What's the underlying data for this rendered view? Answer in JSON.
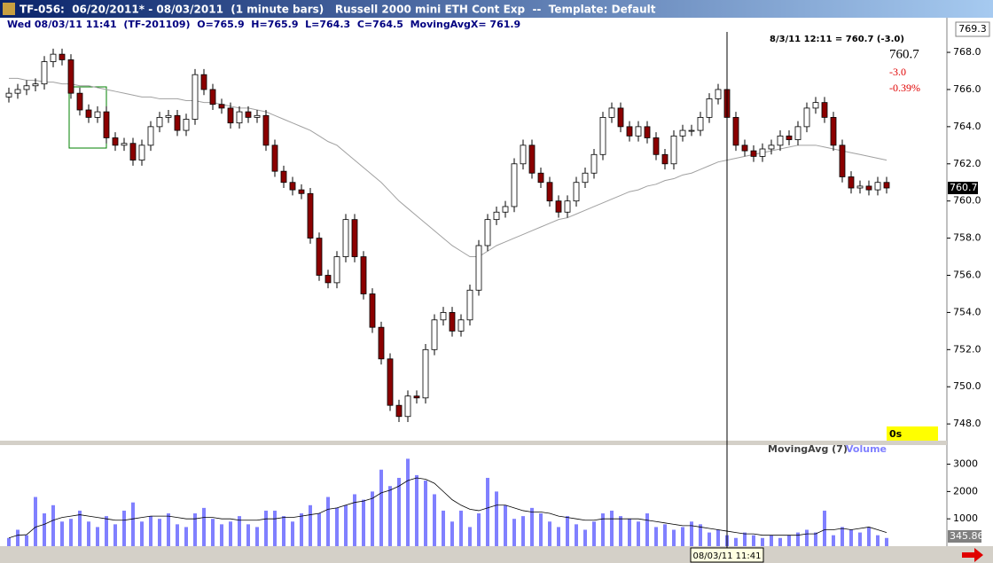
{
  "window": {
    "title": "TF-056:  06/20/2011* - 08/03/2011  (1 minute bars)   Russell 2000 mini ETH Cont Exp  --  Template: Default",
    "info": "Wed 08/03/11 11:41  (TF-201109)  O=765.9  H=765.9  L=764.3  C=764.5  MovingAvgX= 761.9",
    "quote": "8/3/11 12:11 = 760.7 (-3.0)",
    "last": "760.7",
    "change": "-3.0",
    "change_pct": "-0.39%",
    "axis_top": "769.3",
    "timer": "0s",
    "cursor_time": "08/03/11 11:41"
  },
  "chart_data": [
    {
      "type": "candlestick",
      "up_color": "#ffffff",
      "down_color": "#8b0000",
      "last_price": 760.7,
      "open": [
        765.6,
        765.8,
        766.0,
        766.2,
        766.3,
        767.5,
        767.9,
        767.6,
        765.8,
        764.9,
        764.5,
        764.8,
        763.4,
        763.0,
        763.1,
        762.2,
        763.0,
        764.0,
        764.5,
        764.6,
        763.8,
        764.4,
        766.8,
        766.0,
        765.2,
        765.0,
        764.2,
        764.8,
        764.5,
        764.6,
        763.0,
        761.6,
        761.0,
        760.6,
        760.4,
        758.0,
        756.0,
        755.6,
        757.0,
        759.0,
        757.0,
        755.0,
        753.2,
        751.5,
        749.0,
        748.4,
        749.5,
        749.4,
        752.0,
        753.6,
        754.0,
        753.0,
        753.6,
        755.2,
        757.6,
        759.0,
        759.4,
        759.7,
        762.0,
        763.0,
        761.5,
        761.0,
        760.0,
        759.4,
        760.0,
        761.0,
        761.5,
        762.5,
        764.5,
        765.0,
        764.0,
        763.5,
        764.0,
        763.4,
        762.5,
        762.0,
        763.5,
        763.8,
        763.8,
        764.5,
        765.5,
        766.0,
        764.5,
        763.0,
        762.7,
        762.4,
        762.8,
        763.0,
        763.5,
        763.3,
        764.0,
        765.0,
        765.3,
        764.5,
        763.0,
        761.3,
        760.7,
        760.8,
        760.6,
        761.0
      ],
      "high": [
        766.1,
        766.3,
        766.5,
        766.6,
        767.8,
        768.2,
        768.2,
        767.9,
        766.1,
        765.2,
        765.1,
        765.1,
        763.7,
        763.4,
        763.4,
        763.3,
        764.3,
        764.8,
        764.9,
        764.9,
        764.7,
        767.1,
        767.1,
        766.3,
        765.5,
        765.3,
        765.1,
        765.1,
        764.9,
        764.9,
        763.3,
        761.9,
        761.3,
        760.9,
        760.7,
        758.3,
        756.3,
        757.3,
        759.3,
        759.3,
        757.3,
        755.3,
        753.5,
        751.8,
        749.3,
        749.8,
        749.8,
        752.3,
        753.9,
        754.3,
        754.3,
        753.9,
        755.5,
        757.9,
        759.3,
        759.7,
        760.0,
        762.3,
        763.3,
        763.3,
        761.8,
        761.3,
        760.3,
        760.3,
        761.3,
        761.8,
        762.8,
        764.8,
        765.3,
        765.3,
        764.3,
        764.3,
        764.3,
        763.7,
        762.8,
        763.8,
        764.1,
        764.1,
        764.8,
        765.8,
        766.3,
        766.3,
        764.8,
        763.3,
        763.0,
        763.1,
        763.3,
        763.8,
        763.8,
        764.3,
        765.3,
        765.6,
        765.6,
        764.8,
        763.3,
        761.6,
        761.1,
        761.1,
        761.3,
        761.3
      ],
      "low": [
        765.3,
        765.5,
        765.7,
        765.9,
        766.0,
        767.2,
        767.3,
        765.5,
        764.6,
        764.2,
        764.2,
        763.1,
        762.7,
        762.7,
        761.9,
        761.9,
        762.7,
        763.7,
        764.2,
        763.5,
        763.5,
        764.1,
        765.7,
        764.9,
        764.7,
        763.9,
        763.9,
        764.2,
        764.2,
        762.7,
        761.3,
        760.7,
        760.3,
        760.1,
        757.7,
        755.7,
        755.3,
        755.3,
        756.7,
        756.7,
        754.7,
        752.9,
        751.2,
        748.7,
        748.1,
        748.1,
        749.1,
        749.1,
        751.7,
        753.3,
        752.7,
        752.7,
        753.3,
        754.9,
        757.3,
        758.7,
        759.1,
        759.4,
        761.7,
        761.2,
        760.7,
        759.7,
        759.1,
        759.1,
        759.7,
        760.7,
        761.2,
        762.2,
        764.2,
        763.7,
        763.2,
        763.2,
        763.1,
        762.2,
        761.7,
        761.7,
        763.2,
        763.5,
        763.5,
        764.2,
        765.2,
        764.2,
        762.7,
        762.4,
        762.1,
        762.1,
        762.5,
        762.7,
        763.0,
        763.0,
        763.7,
        764.7,
        764.2,
        762.7,
        761.0,
        760.4,
        760.4,
        760.3,
        760.3,
        760.4
      ],
      "close": [
        765.8,
        766.0,
        766.2,
        766.3,
        767.5,
        767.9,
        767.6,
        765.8,
        764.9,
        764.5,
        764.8,
        763.4,
        763.0,
        763.1,
        762.2,
        763.0,
        764.0,
        764.5,
        764.6,
        763.8,
        764.4,
        766.8,
        766.0,
        765.2,
        765.0,
        764.2,
        764.8,
        764.5,
        764.6,
        763.0,
        761.6,
        761.0,
        760.6,
        760.4,
        758.0,
        756.0,
        755.6,
        757.0,
        759.0,
        757.0,
        755.0,
        753.2,
        751.5,
        749.0,
        748.4,
        749.5,
        749.4,
        752.0,
        753.6,
        754.0,
        753.0,
        753.6,
        755.2,
        757.6,
        759.0,
        759.4,
        759.7,
        762.0,
        763.0,
        761.5,
        761.0,
        760.0,
        759.4,
        760.0,
        761.0,
        761.5,
        762.5,
        764.5,
        765.0,
        764.0,
        763.5,
        764.0,
        763.4,
        762.5,
        762.0,
        763.5,
        763.8,
        763.8,
        764.5,
        765.5,
        766.0,
        764.5,
        763.0,
        762.7,
        762.4,
        762.8,
        763.0,
        763.5,
        763.3,
        764.0,
        765.0,
        765.3,
        764.5,
        763.0,
        761.3,
        760.7,
        760.8,
        760.6,
        761.0,
        760.7
      ],
      "moving_average": {
        "color": "#a0a0a0",
        "values": [
          766.6,
          766.6,
          766.5,
          766.5,
          766.4,
          766.4,
          766.3,
          766.3,
          766.2,
          766.2,
          766.1,
          766.0,
          765.9,
          765.8,
          765.7,
          765.6,
          765.6,
          765.5,
          765.5,
          765.5,
          765.4,
          765.4,
          765.3,
          765.3,
          765.2,
          765.1,
          765.0,
          765.0,
          764.9,
          764.8,
          764.6,
          764.4,
          764.2,
          764.0,
          763.8,
          763.5,
          763.2,
          763.0,
          762.6,
          762.2,
          761.8,
          761.4,
          761.0,
          760.5,
          760.0,
          759.6,
          759.2,
          758.8,
          758.4,
          758.0,
          757.6,
          757.3,
          757.0,
          757.0,
          757.3,
          757.6,
          757.8,
          758.0,
          758.2,
          758.4,
          758.6,
          758.8,
          759.0,
          759.1,
          759.3,
          759.5,
          759.7,
          759.9,
          760.1,
          760.3,
          760.5,
          760.6,
          760.8,
          760.9,
          761.1,
          761.2,
          761.4,
          761.5,
          761.7,
          761.9,
          762.1,
          762.2,
          762.3,
          762.4,
          762.5,
          762.6,
          762.7,
          762.8,
          762.9,
          763.0,
          763.0,
          763.0,
          762.9,
          762.8,
          762.7,
          762.6,
          762.5,
          762.4,
          762.3,
          762.2
        ]
      },
      "ylim": [
        747.1,
        769.1
      ],
      "yticks": [
        {
          "value": 748,
          "label": "748.0"
        },
        {
          "value": 750,
          "label": "750.0"
        },
        {
          "value": 752,
          "label": "752.0"
        },
        {
          "value": 754,
          "label": "754.0"
        },
        {
          "value": 756,
          "label": "756.0"
        },
        {
          "value": 758,
          "label": "758.0"
        },
        {
          "value": 760,
          "label": "760.0"
        },
        {
          "value": 762,
          "label": "762.0"
        },
        {
          "value": 764,
          "label": "764.0"
        },
        {
          "value": 766,
          "label": "766.0"
        },
        {
          "value": 768,
          "label": "768.0"
        }
      ]
    },
    {
      "type": "bar",
      "last_label": "345.86",
      "series": [
        {
          "name": "MovingAvg (7)",
          "color": "#000000",
          "type": "line",
          "values": [
            300,
            400,
            420,
            700,
            800,
            950,
            1050,
            1100,
            1150,
            1100,
            1050,
            1000,
            950,
            950,
            1000,
            1050,
            1100,
            1100,
            1100,
            1050,
            1000,
            1000,
            1050,
            1050,
            1000,
            1000,
            950,
            950,
            950,
            1000,
            1000,
            1050,
            1050,
            1100,
            1150,
            1200,
            1350,
            1400,
            1500,
            1600,
            1650,
            1750,
            1950,
            2050,
            2200,
            2400,
            2500,
            2450,
            2300,
            2000,
            1700,
            1500,
            1350,
            1300,
            1400,
            1500,
            1500,
            1400,
            1300,
            1250,
            1250,
            1200,
            1100,
            1050,
            1000,
            950,
            950,
            1000,
            1000,
            1000,
            1000,
            1000,
            950,
            900,
            850,
            800,
            750,
            750,
            700,
            650,
            600,
            550,
            500,
            450,
            450,
            400,
            400,
            400,
            400,
            400,
            450,
            450,
            600,
            600,
            650,
            600,
            650,
            700,
            600,
            500
          ]
        },
        {
          "name": "Volume",
          "color": "#8080ff",
          "values": [
            300,
            600,
            400,
            1800,
            1200,
            1500,
            900,
            1000,
            1300,
            900,
            700,
            1100,
            800,
            1300,
            1600,
            900,
            1100,
            1000,
            1200,
            800,
            700,
            1200,
            1400,
            1000,
            800,
            900,
            1100,
            800,
            700,
            1300,
            1300,
            1100,
            900,
            1200,
            1500,
            1200,
            1800,
            1400,
            1500,
            1900,
            1700,
            2000,
            2800,
            2200,
            2500,
            3200,
            2600,
            2400,
            1900,
            1300,
            900,
            1300,
            700,
            1200,
            2500,
            2000,
            1500,
            1000,
            1100,
            1400,
            1200,
            900,
            700,
            1100,
            800,
            600,
            900,
            1200,
            1300,
            1100,
            1000,
            900,
            1200,
            700,
            800,
            600,
            700,
            900,
            800,
            500,
            600,
            400,
            300,
            500,
            400,
            300,
            400,
            300,
            400,
            500,
            600,
            500,
            1300,
            400,
            700,
            600,
            500,
            700,
            400,
            300
          ]
        }
      ],
      "ylim": [
        0,
        3700
      ],
      "yticks": [
        1000,
        2000,
        3000
      ]
    }
  ]
}
